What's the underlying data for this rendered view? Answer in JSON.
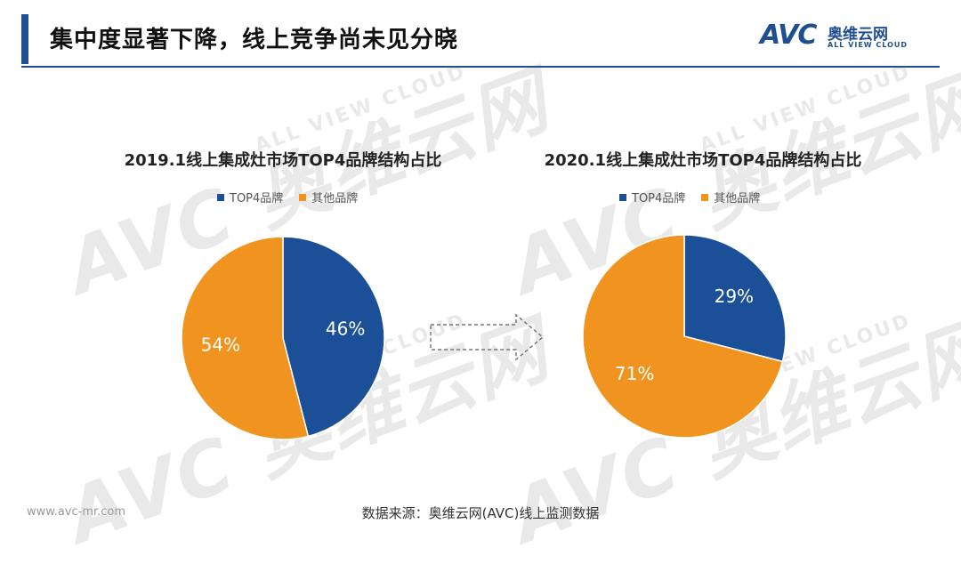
{
  "page": {
    "title": "集中度显著下降，线上竞争尚未见分晓",
    "source": "数据来源：奥维云网(AVC)线上监测数据",
    "site": "www.avc-mr.com"
  },
  "logo": {
    "mark": "AVC",
    "cn": "奥维云网",
    "en": "ALL VIEW CLOUD"
  },
  "watermark": {
    "main": "AVC 奥维云网",
    "sub": "ALL VIEW CLOUD"
  },
  "colors": {
    "accent": "#1f4e91",
    "top4": "#1b4f97",
    "other": "#f0941f"
  },
  "chart_data": [
    {
      "type": "pie",
      "title": "2019.1线上集成灶市场TOP4品牌结构占比",
      "legend": [
        "TOP4品牌",
        "其他品牌"
      ],
      "categories": [
        "TOP4品牌",
        "其他品牌"
      ],
      "values": [
        46,
        54
      ],
      "labels": [
        "46%",
        "54%"
      ]
    },
    {
      "type": "pie",
      "title": "2020.1线上集成灶市场TOP4品牌结构占比",
      "legend": [
        "TOP4品牌",
        "其他品牌"
      ],
      "categories": [
        "TOP4品牌",
        "其他品牌"
      ],
      "values": [
        29,
        71
      ],
      "labels": [
        "29%",
        "71%"
      ]
    }
  ]
}
